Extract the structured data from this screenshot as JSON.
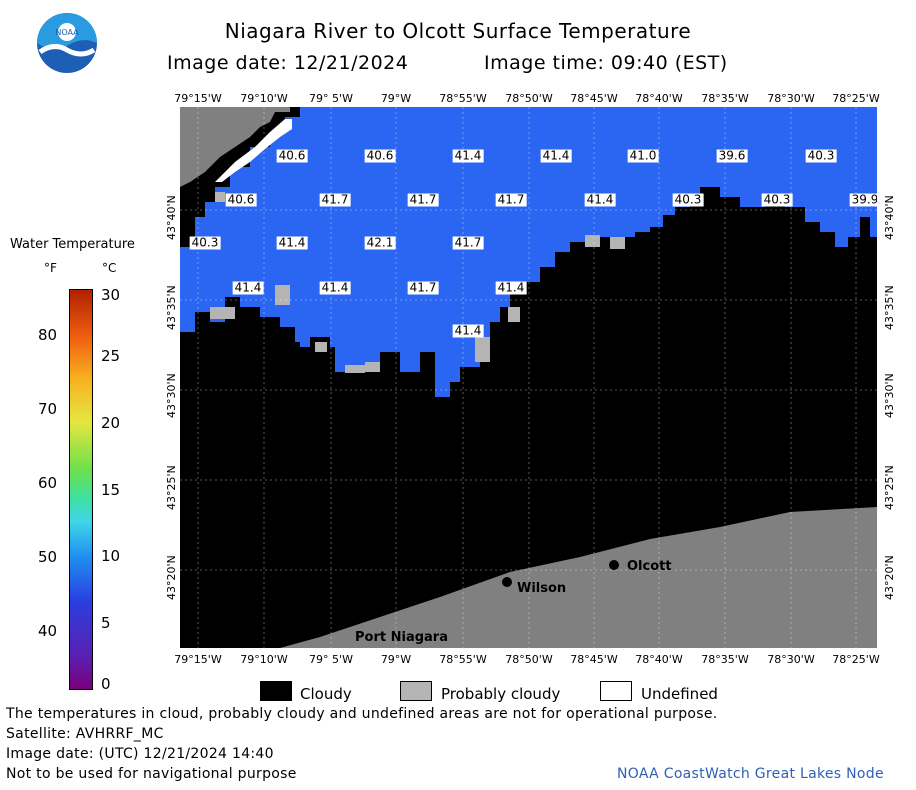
{
  "header": {
    "title": "Niagara River to Olcott Surface Temperature",
    "image_date": "Image date: 12/21/2024",
    "image_time": "Image time: 09:40 (EST)"
  },
  "logo": {
    "text": "NOAA"
  },
  "axes": {
    "longitudes": [
      "79°15'W",
      "79°10'W",
      "79° 5'W",
      "79°W",
      "78°55'W",
      "78°50'W",
      "78°45'W",
      "78°40'W",
      "78°35'W",
      "78°30'W",
      "78°25'W"
    ],
    "latitudes": [
      "43°40'N",
      "43°35'N",
      "43°30'N",
      "43°25'N",
      "43°20'N"
    ]
  },
  "legend": {
    "title": "Water Temperature",
    "unit_f": "°F",
    "unit_c": "°C",
    "f_ticks": [
      "80",
      "70",
      "60",
      "50",
      "40"
    ],
    "c_ticks": [
      "30",
      "25",
      "20",
      "15",
      "10",
      "5",
      "0"
    ]
  },
  "temperatures": [
    {
      "value": "40.6",
      "row": 0,
      "col": 1
    },
    {
      "value": "40.6",
      "row": 0,
      "col": 2
    },
    {
      "value": "41.4",
      "row": 0,
      "col": 3
    },
    {
      "value": "41.4",
      "row": 0,
      "col": 4
    },
    {
      "value": "41.0",
      "row": 0,
      "col": 5
    },
    {
      "value": "39.6",
      "row": 0,
      "col": 6
    },
    {
      "value": "40.3",
      "row": 0,
      "col": 7
    },
    {
      "value": "40.6",
      "row": 1,
      "col": 0
    },
    {
      "value": "41.7",
      "row": 1,
      "col": 1
    },
    {
      "value": "41.7",
      "row": 1,
      "col": 2
    },
    {
      "value": "41.7",
      "row": 1,
      "col": 3
    },
    {
      "value": "41.4",
      "row": 1,
      "col": 4
    },
    {
      "value": "40.3",
      "row": 1,
      "col": 5
    },
    {
      "value": "40.3",
      "row": 1,
      "col": 6
    },
    {
      "value": "39.9",
      "row": 1,
      "col": 7
    },
    {
      "value": "40.3",
      "row": 2,
      "col": 0
    },
    {
      "value": "41.4",
      "row": 2,
      "col": 1
    },
    {
      "value": "42.1",
      "row": 2,
      "col": 2
    },
    {
      "value": "41.7",
      "row": 2,
      "col": 3
    },
    {
      "value": "41.4",
      "row": 3,
      "col": 0
    },
    {
      "value": "41.4",
      "row": 3,
      "col": 1
    },
    {
      "value": "41.7",
      "row": 3,
      "col": 2
    },
    {
      "value": "41.4",
      "row": 3,
      "col": 3
    },
    {
      "value": "41.4",
      "row": 4,
      "col": 3
    }
  ],
  "places": {
    "olcott": "Olcott",
    "wilson": "Wilson",
    "port_niagara": "Port Niagara"
  },
  "key": {
    "cloudy": "Cloudy",
    "probably_cloudy": "Probably cloudy",
    "undefined": "Undefined"
  },
  "footer": {
    "disclaimer": "The temperatures in cloud, probably cloudy and undefined areas are not for operational purpose.",
    "satellite": "Satellite: AVHRRF_MC",
    "utc": "Image date: (UTC) 12/21/2024  14:40",
    "nav": "Not to be used for navigational purpose",
    "credit": "NOAA CoastWatch Great Lakes Node"
  },
  "colors": {
    "water": "#2a66f2",
    "cloud": "#000000",
    "probably_cloudy": "#b4b4b4",
    "land": "#808080",
    "undefined": "#ffffff"
  }
}
